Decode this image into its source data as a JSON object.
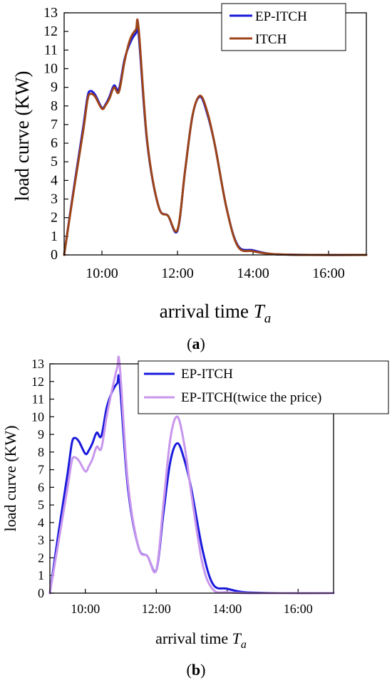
{
  "chart_data": [
    {
      "type": "line",
      "panel_caption": "a",
      "xlabel": "arrival time",
      "xlabel_symbol": "T",
      "xlabel_subscript": "a",
      "ylabel": "load curve (KW)",
      "xlim": [
        9.0,
        17.0
      ],
      "ylim": [
        0,
        13
      ],
      "x_ticks": [
        {
          "v": 10,
          "label": "10:00"
        },
        {
          "v": 12,
          "label": "12:00"
        },
        {
          "v": 14,
          "label": "14:00"
        },
        {
          "v": 16,
          "label": "16:00"
        }
      ],
      "y_ticks": [
        0,
        1,
        2,
        3,
        4,
        5,
        6,
        7,
        8,
        9,
        10,
        11,
        12,
        13
      ],
      "grid": false,
      "legend_position": "top-right",
      "series": [
        {
          "name": "EP-ITCH",
          "color": "#1a1adc",
          "width": 3,
          "x": [
            9.0,
            9.25,
            9.5,
            9.62,
            9.7,
            9.82,
            10.0,
            10.1,
            10.2,
            10.32,
            10.45,
            10.6,
            10.75,
            10.9,
            10.97,
            11.2,
            11.5,
            11.75,
            12.0,
            12.2,
            12.4,
            12.6,
            12.8,
            13.0,
            13.3,
            13.6,
            14.0,
            14.5,
            15.5,
            17.0
          ],
          "y": [
            0.0,
            3.5,
            6.8,
            8.5,
            8.8,
            8.6,
            7.9,
            8.1,
            8.5,
            9.1,
            8.9,
            10.5,
            11.4,
            11.9,
            11.9,
            6.0,
            2.6,
            2.1,
            1.3,
            4.5,
            7.5,
            8.5,
            7.5,
            5.8,
            2.5,
            0.5,
            0.25,
            0.05,
            0.0,
            0.0
          ]
        },
        {
          "name": "ITCH",
          "color": "#9c4418",
          "width": 3,
          "x": [
            9.0,
            9.25,
            9.5,
            9.62,
            9.7,
            9.82,
            10.0,
            10.1,
            10.2,
            10.32,
            10.45,
            10.6,
            10.75,
            10.9,
            10.97,
            11.2,
            11.5,
            11.75,
            12.0,
            12.2,
            12.4,
            12.6,
            12.8,
            13.0,
            13.3,
            13.6,
            14.0,
            14.5,
            15.5,
            17.0
          ],
          "y": [
            0.0,
            3.4,
            6.6,
            8.35,
            8.65,
            8.5,
            7.85,
            8.05,
            8.4,
            9.0,
            8.75,
            10.4,
            11.6,
            12.1,
            12.2,
            6.1,
            2.6,
            2.1,
            1.35,
            4.5,
            7.5,
            8.55,
            7.6,
            5.8,
            2.5,
            0.45,
            0.2,
            0.05,
            0.0,
            0.0
          ]
        }
      ]
    },
    {
      "type": "line",
      "panel_caption": "b",
      "xlabel": "arrival time",
      "xlabel_symbol": "T",
      "xlabel_subscript": "a",
      "ylabel": "load curve (KW)",
      "xlim": [
        9.0,
        17.0
      ],
      "ylim": [
        0,
        13
      ],
      "x_ticks": [
        {
          "v": 10,
          "label": "10:00"
        },
        {
          "v": 12,
          "label": "12:00"
        },
        {
          "v": 14,
          "label": "14:00"
        },
        {
          "v": 16,
          "label": "16:00"
        }
      ],
      "y_ticks": [
        0,
        1,
        2,
        3,
        4,
        5,
        6,
        7,
        8,
        9,
        10,
        11,
        12,
        13
      ],
      "grid": false,
      "legend_position": "top-right",
      "series": [
        {
          "name": "EP-ITCH",
          "color": "#1a1adc",
          "width": 3,
          "x": [
            9.0,
            9.25,
            9.5,
            9.62,
            9.7,
            9.82,
            10.0,
            10.1,
            10.2,
            10.32,
            10.45,
            10.6,
            10.75,
            10.9,
            10.97,
            11.2,
            11.5,
            11.75,
            12.0,
            12.2,
            12.4,
            12.6,
            12.8,
            13.0,
            13.3,
            13.6,
            14.0,
            14.5,
            15.5,
            17.0
          ],
          "y": [
            0.0,
            3.5,
            6.8,
            8.5,
            8.8,
            8.6,
            7.9,
            8.1,
            8.5,
            9.1,
            8.9,
            10.5,
            11.4,
            11.9,
            11.9,
            6.0,
            2.6,
            2.1,
            1.3,
            4.5,
            7.5,
            8.5,
            7.5,
            5.8,
            2.5,
            0.5,
            0.25,
            0.05,
            0.0,
            0.0
          ]
        },
        {
          "name": "EP-ITCH(twice the price)",
          "color": "#c896ec",
          "width": 3,
          "x": [
            9.0,
            9.25,
            9.5,
            9.62,
            9.7,
            9.82,
            10.0,
            10.1,
            10.2,
            10.32,
            10.45,
            10.6,
            10.75,
            10.9,
            10.97,
            11.2,
            11.5,
            11.75,
            12.0,
            12.2,
            12.4,
            12.6,
            12.8,
            13.0,
            13.3,
            13.6,
            14.0,
            14.5,
            15.5,
            17.0
          ],
          "y": [
            0.0,
            3.0,
            6.0,
            7.5,
            7.7,
            7.5,
            6.9,
            7.2,
            7.6,
            8.3,
            8.2,
            10.0,
            11.5,
            12.8,
            12.9,
            6.3,
            2.6,
            2.1,
            1.3,
            5.0,
            8.8,
            10.0,
            8.3,
            5.5,
            1.7,
            0.2,
            0.05,
            0.0,
            0.0,
            0.0
          ]
        }
      ]
    }
  ]
}
